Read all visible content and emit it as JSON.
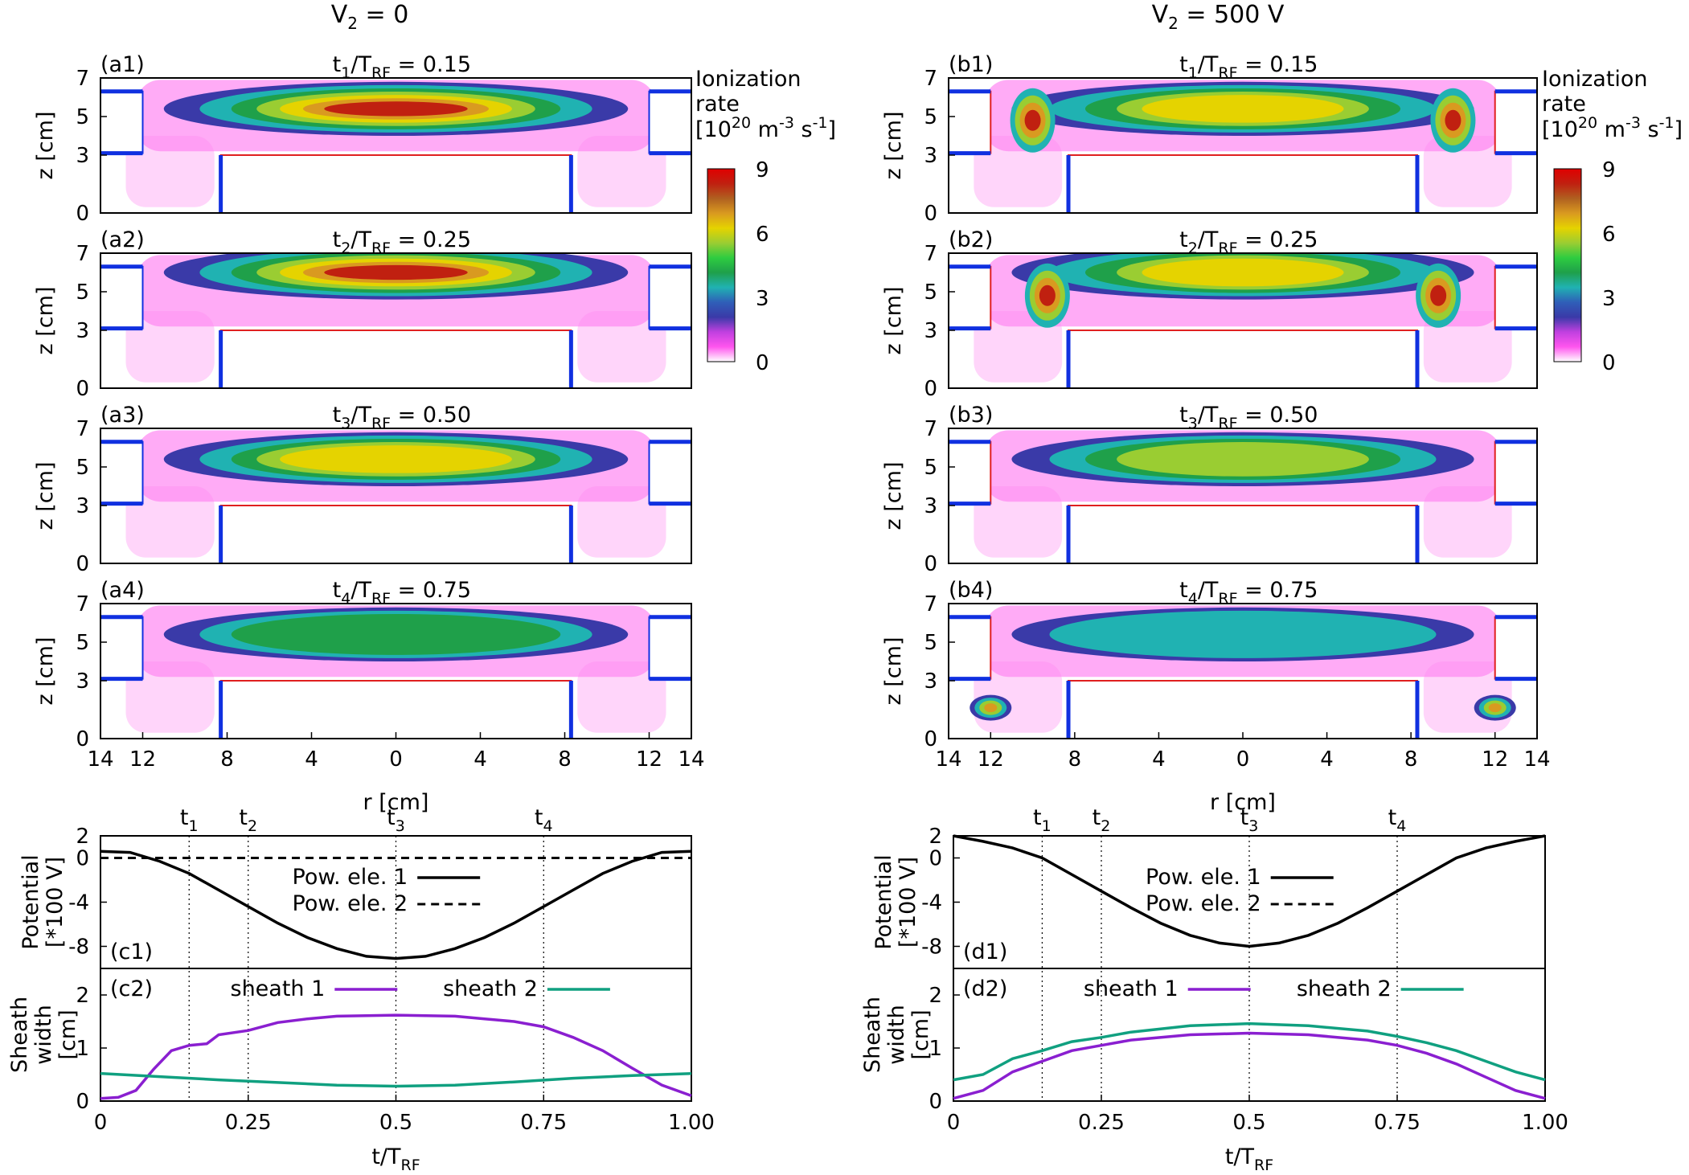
{
  "figure": {
    "column_titles": [
      {
        "main": "V",
        "sub": "2",
        "rest": " = 0"
      },
      {
        "main": "V",
        "sub": "2",
        "rest": " = 500 V"
      }
    ],
    "colorbar": {
      "label_lines": [
        "Ionization",
        "rate"
      ],
      "unit_parts": [
        "[10",
        "20",
        " m",
        "-3",
        " s",
        "-1",
        "]"
      ],
      "ticks": [
        "9",
        "6",
        "3",
        "0"
      ],
      "colors": [
        "#ffffff",
        "#ff55ee",
        "#c040e0",
        "#3a3aa8",
        "#2f5fb8",
        "#20b2b2",
        "#1fa04a",
        "#2ecc40",
        "#9acd32",
        "#e5d300",
        "#d99a20",
        "#b06020",
        "#c02010",
        "#e00000"
      ]
    },
    "ionization_rows": [
      {
        "time_label": "t1/TRF = 0.15",
        "t_sym": "t",
        "t_sub": "1",
        "ratio": " = 0.15"
      },
      {
        "time_label": "t2/TRF = 0.25",
        "t_sym": "t",
        "t_sub": "2",
        "ratio": " = 0.25"
      },
      {
        "time_label": "t3/TRF = 0.50",
        "t_sym": "t",
        "t_sub": "3",
        "ratio": " = 0.50"
      },
      {
        "time_label": "t4/TRF = 0.75",
        "t_sym": "t",
        "t_sub": "4",
        "ratio": " = 0.75"
      }
    ],
    "panel_labels_a": [
      "(a1)",
      "(a2)",
      "(a3)",
      "(a4)"
    ],
    "panel_labels_b": [
      "(b1)",
      "(b2)",
      "(b3)",
      "(b4)"
    ],
    "ionization_ylabel": "z [cm]",
    "ionization_yticks": [
      "7",
      "5",
      "3",
      "0"
    ],
    "ionization_xticks": [
      "14",
      "12",
      "8",
      "4",
      "0",
      "4",
      "8",
      "12",
      "14"
    ],
    "ionization_xlabel": "r [cm]",
    "electrode_colors": {
      "powered": "#e02020",
      "grounded": "#1030e0"
    },
    "bottom_panels": {
      "time_markers": [
        {
          "sym": "t",
          "sub": "1",
          "value": 0.15
        },
        {
          "sym": "t",
          "sub": "2",
          "value": 0.25
        },
        {
          "sym": "t",
          "sub": "3",
          "value": 0.5
        },
        {
          "sym": "t",
          "sub": "4",
          "value": 0.75
        }
      ],
      "potential_ylabel_lines": [
        "Potential",
        "[*100 V]"
      ],
      "potential_yticks": [
        "2",
        "0",
        "-4",
        "-8"
      ],
      "sheath_ylabel_lines": [
        "Sheath",
        "width",
        "[cm]"
      ],
      "sheath_yticks": [
        "2",
        "1",
        "0"
      ],
      "xticks": [
        "0",
        "0.25",
        "0.5",
        "0.75",
        "1.00"
      ],
      "xlabel_main": "t/T",
      "xlabel_sub": "RF",
      "legend_potential": [
        "Pow. ele. 1",
        "Pow. ele. 2"
      ],
      "legend_sheath": [
        "sheath 1",
        "sheath 2"
      ],
      "labels_left": [
        "(c1)",
        "(c2)"
      ],
      "labels_right": [
        "(d1)",
        "(d2)"
      ],
      "sheath_colors": {
        "sheath1": "#8a1fd0",
        "sheath2": "#10a080"
      }
    }
  },
  "chart_data": [
    {
      "type": "line",
      "panel": "(c1)",
      "ylabel": "Potential [*100 V]",
      "xlabel": "t/TRF",
      "xlim": [
        0,
        1
      ],
      "ylim": [
        -10,
        2
      ],
      "series": [
        {
          "name": "Pow. ele. 1",
          "x": [
            0,
            0.05,
            0.1,
            0.15,
            0.2,
            0.25,
            0.3,
            0.35,
            0.4,
            0.45,
            0.5,
            0.55,
            0.6,
            0.65,
            0.7,
            0.75,
            0.8,
            0.85,
            0.9,
            0.95,
            1.0
          ],
          "y": [
            0.6,
            0.5,
            -0.3,
            -1.4,
            -2.9,
            -4.4,
            -5.9,
            -7.2,
            -8.2,
            -8.9,
            -9.1,
            -8.9,
            -8.2,
            -7.2,
            -5.9,
            -4.4,
            -2.9,
            -1.4,
            -0.3,
            0.5,
            0.6
          ]
        },
        {
          "name": "Pow. ele. 2",
          "x": [
            0,
            1
          ],
          "y": [
            0,
            0
          ],
          "dashed": true
        }
      ]
    },
    {
      "type": "line",
      "panel": "(c2)",
      "ylabel": "Sheath width [cm]",
      "xlabel": "t/TRF",
      "xlim": [
        0,
        1
      ],
      "ylim": [
        0,
        2.5
      ],
      "series": [
        {
          "name": "sheath 1",
          "x": [
            0,
            0.03,
            0.06,
            0.09,
            0.12,
            0.15,
            0.18,
            0.2,
            0.25,
            0.3,
            0.35,
            0.4,
            0.5,
            0.6,
            0.65,
            0.7,
            0.75,
            0.8,
            0.85,
            0.9,
            0.95,
            1.0
          ],
          "y": [
            0.05,
            0.07,
            0.2,
            0.6,
            0.95,
            1.05,
            1.08,
            1.25,
            1.33,
            1.48,
            1.55,
            1.6,
            1.62,
            1.6,
            1.55,
            1.5,
            1.4,
            1.2,
            0.95,
            0.62,
            0.3,
            0.1
          ]
        },
        {
          "name": "sheath 2",
          "x": [
            0,
            0.1,
            0.2,
            0.3,
            0.4,
            0.5,
            0.6,
            0.7,
            0.8,
            0.9,
            1.0
          ],
          "y": [
            0.52,
            0.46,
            0.4,
            0.35,
            0.3,
            0.28,
            0.3,
            0.36,
            0.43,
            0.48,
            0.52
          ]
        }
      ]
    },
    {
      "type": "line",
      "panel": "(d1)",
      "ylabel": "Potential [*100 V]",
      "xlabel": "t/TRF",
      "xlim": [
        0,
        1
      ],
      "ylim": [
        -10,
        2
      ],
      "series": [
        {
          "name": "Pow. ele. 1",
          "x": [
            0,
            0.05,
            0.1,
            0.15,
            0.2,
            0.25,
            0.3,
            0.35,
            0.4,
            0.45,
            0.5,
            0.55,
            0.6,
            0.65,
            0.7,
            0.75,
            0.8,
            0.85,
            0.9,
            0.95,
            1.0
          ],
          "y": [
            2.0,
            1.5,
            0.9,
            0.0,
            -1.5,
            -3.0,
            -4.5,
            -5.9,
            -7.0,
            -7.7,
            -8.0,
            -7.7,
            -7.0,
            -5.9,
            -4.5,
            -3.0,
            -1.5,
            0.0,
            0.9,
            1.5,
            2.0
          ]
        }
      ]
    },
    {
      "type": "line",
      "panel": "(d2)",
      "ylabel": "Sheath width [cm]",
      "xlabel": "t/TRF",
      "xlim": [
        0,
        1
      ],
      "ylim": [
        0,
        2.5
      ],
      "series": [
        {
          "name": "sheath 1",
          "x": [
            0,
            0.05,
            0.1,
            0.15,
            0.2,
            0.25,
            0.3,
            0.4,
            0.5,
            0.6,
            0.7,
            0.75,
            0.8,
            0.85,
            0.9,
            0.95,
            1.0
          ],
          "y": [
            0.05,
            0.2,
            0.55,
            0.75,
            0.95,
            1.05,
            1.15,
            1.25,
            1.28,
            1.25,
            1.15,
            1.05,
            0.9,
            0.7,
            0.45,
            0.2,
            0.05
          ]
        },
        {
          "name": "sheath 2",
          "x": [
            0,
            0.05,
            0.1,
            0.15,
            0.2,
            0.25,
            0.3,
            0.4,
            0.5,
            0.6,
            0.7,
            0.75,
            0.8,
            0.85,
            0.9,
            0.95,
            1.0
          ],
          "y": [
            0.4,
            0.5,
            0.8,
            0.95,
            1.12,
            1.2,
            1.3,
            1.42,
            1.46,
            1.42,
            1.32,
            1.22,
            1.1,
            0.95,
            0.75,
            0.55,
            0.4
          ]
        }
      ]
    }
  ]
}
